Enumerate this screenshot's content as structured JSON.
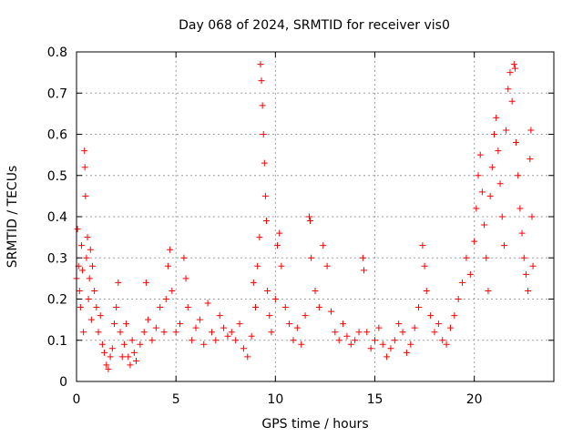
{
  "chart_data": {
    "type": "scatter",
    "title": "Day 068 of 2024, SRMTID for receiver vis0",
    "xlabel": "GPS time / hours",
    "ylabel": "SRMTID / TECUs",
    "xlim": [
      0,
      24
    ],
    "ylim": [
      0,
      0.8
    ],
    "x_ticks": [
      0,
      5,
      10,
      15,
      20
    ],
    "x_tick_labels": [
      "0",
      "5",
      "10",
      "15",
      "20"
    ],
    "y_ticks": [
      0,
      0.1,
      0.2,
      0.3,
      0.4,
      0.5,
      0.6,
      0.7,
      0.8
    ],
    "y_tick_labels": [
      "0",
      "0.1",
      "0.2",
      "0.3",
      "0.4",
      "0.5",
      "0.6",
      "0.7",
      "0.8"
    ],
    "grid": true,
    "marker": "+",
    "color": "#ff0000",
    "series": [
      {
        "name": "SRMTID",
        "points": [
          [
            0.0,
            0.25
          ],
          [
            0.05,
            0.37
          ],
          [
            0.1,
            0.28
          ],
          [
            0.15,
            0.22
          ],
          [
            0.2,
            0.18
          ],
          [
            0.25,
            0.33
          ],
          [
            0.3,
            0.27
          ],
          [
            0.35,
            0.12
          ],
          [
            0.4,
            0.56
          ],
          [
            0.42,
            0.52
          ],
          [
            0.45,
            0.45
          ],
          [
            0.5,
            0.3
          ],
          [
            0.55,
            0.35
          ],
          [
            0.6,
            0.2
          ],
          [
            0.65,
            0.25
          ],
          [
            0.7,
            0.32
          ],
          [
            0.75,
            0.15
          ],
          [
            0.8,
            0.28
          ],
          [
            0.9,
            0.22
          ],
          [
            1.0,
            0.18
          ],
          [
            1.1,
            0.12
          ],
          [
            1.2,
            0.16
          ],
          [
            1.3,
            0.09
          ],
          [
            1.4,
            0.07
          ],
          [
            1.5,
            0.04
          ],
          [
            1.6,
            0.03
          ],
          [
            1.7,
            0.06
          ],
          [
            1.8,
            0.08
          ],
          [
            1.9,
            0.14
          ],
          [
            2.0,
            0.18
          ],
          [
            2.1,
            0.24
          ],
          [
            2.2,
            0.12
          ],
          [
            2.3,
            0.06
          ],
          [
            2.4,
            0.09
          ],
          [
            2.5,
            0.14
          ],
          [
            2.6,
            0.06
          ],
          [
            2.7,
            0.04
          ],
          [
            2.8,
            0.1
          ],
          [
            2.9,
            0.07
          ],
          [
            3.0,
            0.05
          ],
          [
            3.2,
            0.09
          ],
          [
            3.4,
            0.12
          ],
          [
            3.5,
            0.24
          ],
          [
            3.6,
            0.15
          ],
          [
            3.8,
            0.1
          ],
          [
            4.0,
            0.13
          ],
          [
            4.2,
            0.18
          ],
          [
            4.4,
            0.12
          ],
          [
            4.5,
            0.2
          ],
          [
            4.6,
            0.28
          ],
          [
            4.7,
            0.32
          ],
          [
            4.8,
            0.22
          ],
          [
            5.0,
            0.12
          ],
          [
            5.2,
            0.14
          ],
          [
            5.4,
            0.3
          ],
          [
            5.5,
            0.25
          ],
          [
            5.6,
            0.18
          ],
          [
            5.8,
            0.1
          ],
          [
            6.0,
            0.13
          ],
          [
            6.2,
            0.15
          ],
          [
            6.4,
            0.09
          ],
          [
            6.6,
            0.19
          ],
          [
            6.8,
            0.12
          ],
          [
            7.0,
            0.1
          ],
          [
            7.2,
            0.16
          ],
          [
            7.4,
            0.13
          ],
          [
            7.6,
            0.11
          ],
          [
            7.8,
            0.12
          ],
          [
            8.0,
            0.1
          ],
          [
            8.2,
            0.14
          ],
          [
            8.4,
            0.08
          ],
          [
            8.6,
            0.06
          ],
          [
            8.8,
            0.11
          ],
          [
            8.9,
            0.24
          ],
          [
            9.0,
            0.18
          ],
          [
            9.1,
            0.28
          ],
          [
            9.2,
            0.35
          ],
          [
            9.25,
            0.77
          ],
          [
            9.3,
            0.73
          ],
          [
            9.35,
            0.67
          ],
          [
            9.4,
            0.6
          ],
          [
            9.45,
            0.53
          ],
          [
            9.5,
            0.45
          ],
          [
            9.55,
            0.39
          ],
          [
            9.6,
            0.22
          ],
          [
            9.7,
            0.16
          ],
          [
            9.8,
            0.12
          ],
          [
            10.0,
            0.2
          ],
          [
            10.1,
            0.33
          ],
          [
            10.2,
            0.36
          ],
          [
            10.3,
            0.28
          ],
          [
            10.5,
            0.18
          ],
          [
            10.7,
            0.14
          ],
          [
            10.9,
            0.1
          ],
          [
            11.1,
            0.13
          ],
          [
            11.3,
            0.09
          ],
          [
            11.5,
            0.16
          ],
          [
            11.7,
            0.4
          ],
          [
            11.75,
            0.39
          ],
          [
            11.8,
            0.3
          ],
          [
            12.0,
            0.22
          ],
          [
            12.2,
            0.18
          ],
          [
            12.4,
            0.33
          ],
          [
            12.6,
            0.28
          ],
          [
            12.8,
            0.17
          ],
          [
            13.0,
            0.12
          ],
          [
            13.2,
            0.1
          ],
          [
            13.4,
            0.14
          ],
          [
            13.6,
            0.11
          ],
          [
            13.8,
            0.09
          ],
          [
            14.0,
            0.1
          ],
          [
            14.2,
            0.12
          ],
          [
            14.4,
            0.3
          ],
          [
            14.45,
            0.27
          ],
          [
            14.6,
            0.12
          ],
          [
            14.8,
            0.08
          ],
          [
            15.0,
            0.1
          ],
          [
            15.2,
            0.13
          ],
          [
            15.4,
            0.09
          ],
          [
            15.6,
            0.06
          ],
          [
            15.8,
            0.08
          ],
          [
            16.0,
            0.1
          ],
          [
            16.2,
            0.14
          ],
          [
            16.4,
            0.12
          ],
          [
            16.6,
            0.07
          ],
          [
            16.8,
            0.09
          ],
          [
            17.0,
            0.13
          ],
          [
            17.2,
            0.18
          ],
          [
            17.4,
            0.33
          ],
          [
            17.5,
            0.28
          ],
          [
            17.6,
            0.22
          ],
          [
            17.8,
            0.16
          ],
          [
            18.0,
            0.12
          ],
          [
            18.2,
            0.14
          ],
          [
            18.4,
            0.1
          ],
          [
            18.6,
            0.09
          ],
          [
            18.8,
            0.13
          ],
          [
            19.0,
            0.16
          ],
          [
            19.2,
            0.2
          ],
          [
            19.4,
            0.24
          ],
          [
            19.6,
            0.3
          ],
          [
            19.8,
            0.26
          ],
          [
            20.0,
            0.34
          ],
          [
            20.1,
            0.42
          ],
          [
            20.2,
            0.5
          ],
          [
            20.3,
            0.55
          ],
          [
            20.4,
            0.46
          ],
          [
            20.5,
            0.38
          ],
          [
            20.6,
            0.3
          ],
          [
            20.7,
            0.22
          ],
          [
            20.8,
            0.45
          ],
          [
            20.9,
            0.52
          ],
          [
            21.0,
            0.6
          ],
          [
            21.1,
            0.64
          ],
          [
            21.2,
            0.56
          ],
          [
            21.3,
            0.48
          ],
          [
            21.4,
            0.4
          ],
          [
            21.5,
            0.33
          ],
          [
            21.6,
            0.61
          ],
          [
            21.7,
            0.71
          ],
          [
            21.8,
            0.75
          ],
          [
            21.9,
            0.68
          ],
          [
            22.0,
            0.77
          ],
          [
            22.05,
            0.76
          ],
          [
            22.1,
            0.58
          ],
          [
            22.2,
            0.5
          ],
          [
            22.3,
            0.42
          ],
          [
            22.4,
            0.36
          ],
          [
            22.5,
            0.3
          ],
          [
            22.6,
            0.26
          ],
          [
            22.7,
            0.22
          ],
          [
            22.8,
            0.54
          ],
          [
            22.85,
            0.61
          ],
          [
            22.9,
            0.4
          ],
          [
            22.95,
            0.28
          ]
        ]
      }
    ]
  }
}
